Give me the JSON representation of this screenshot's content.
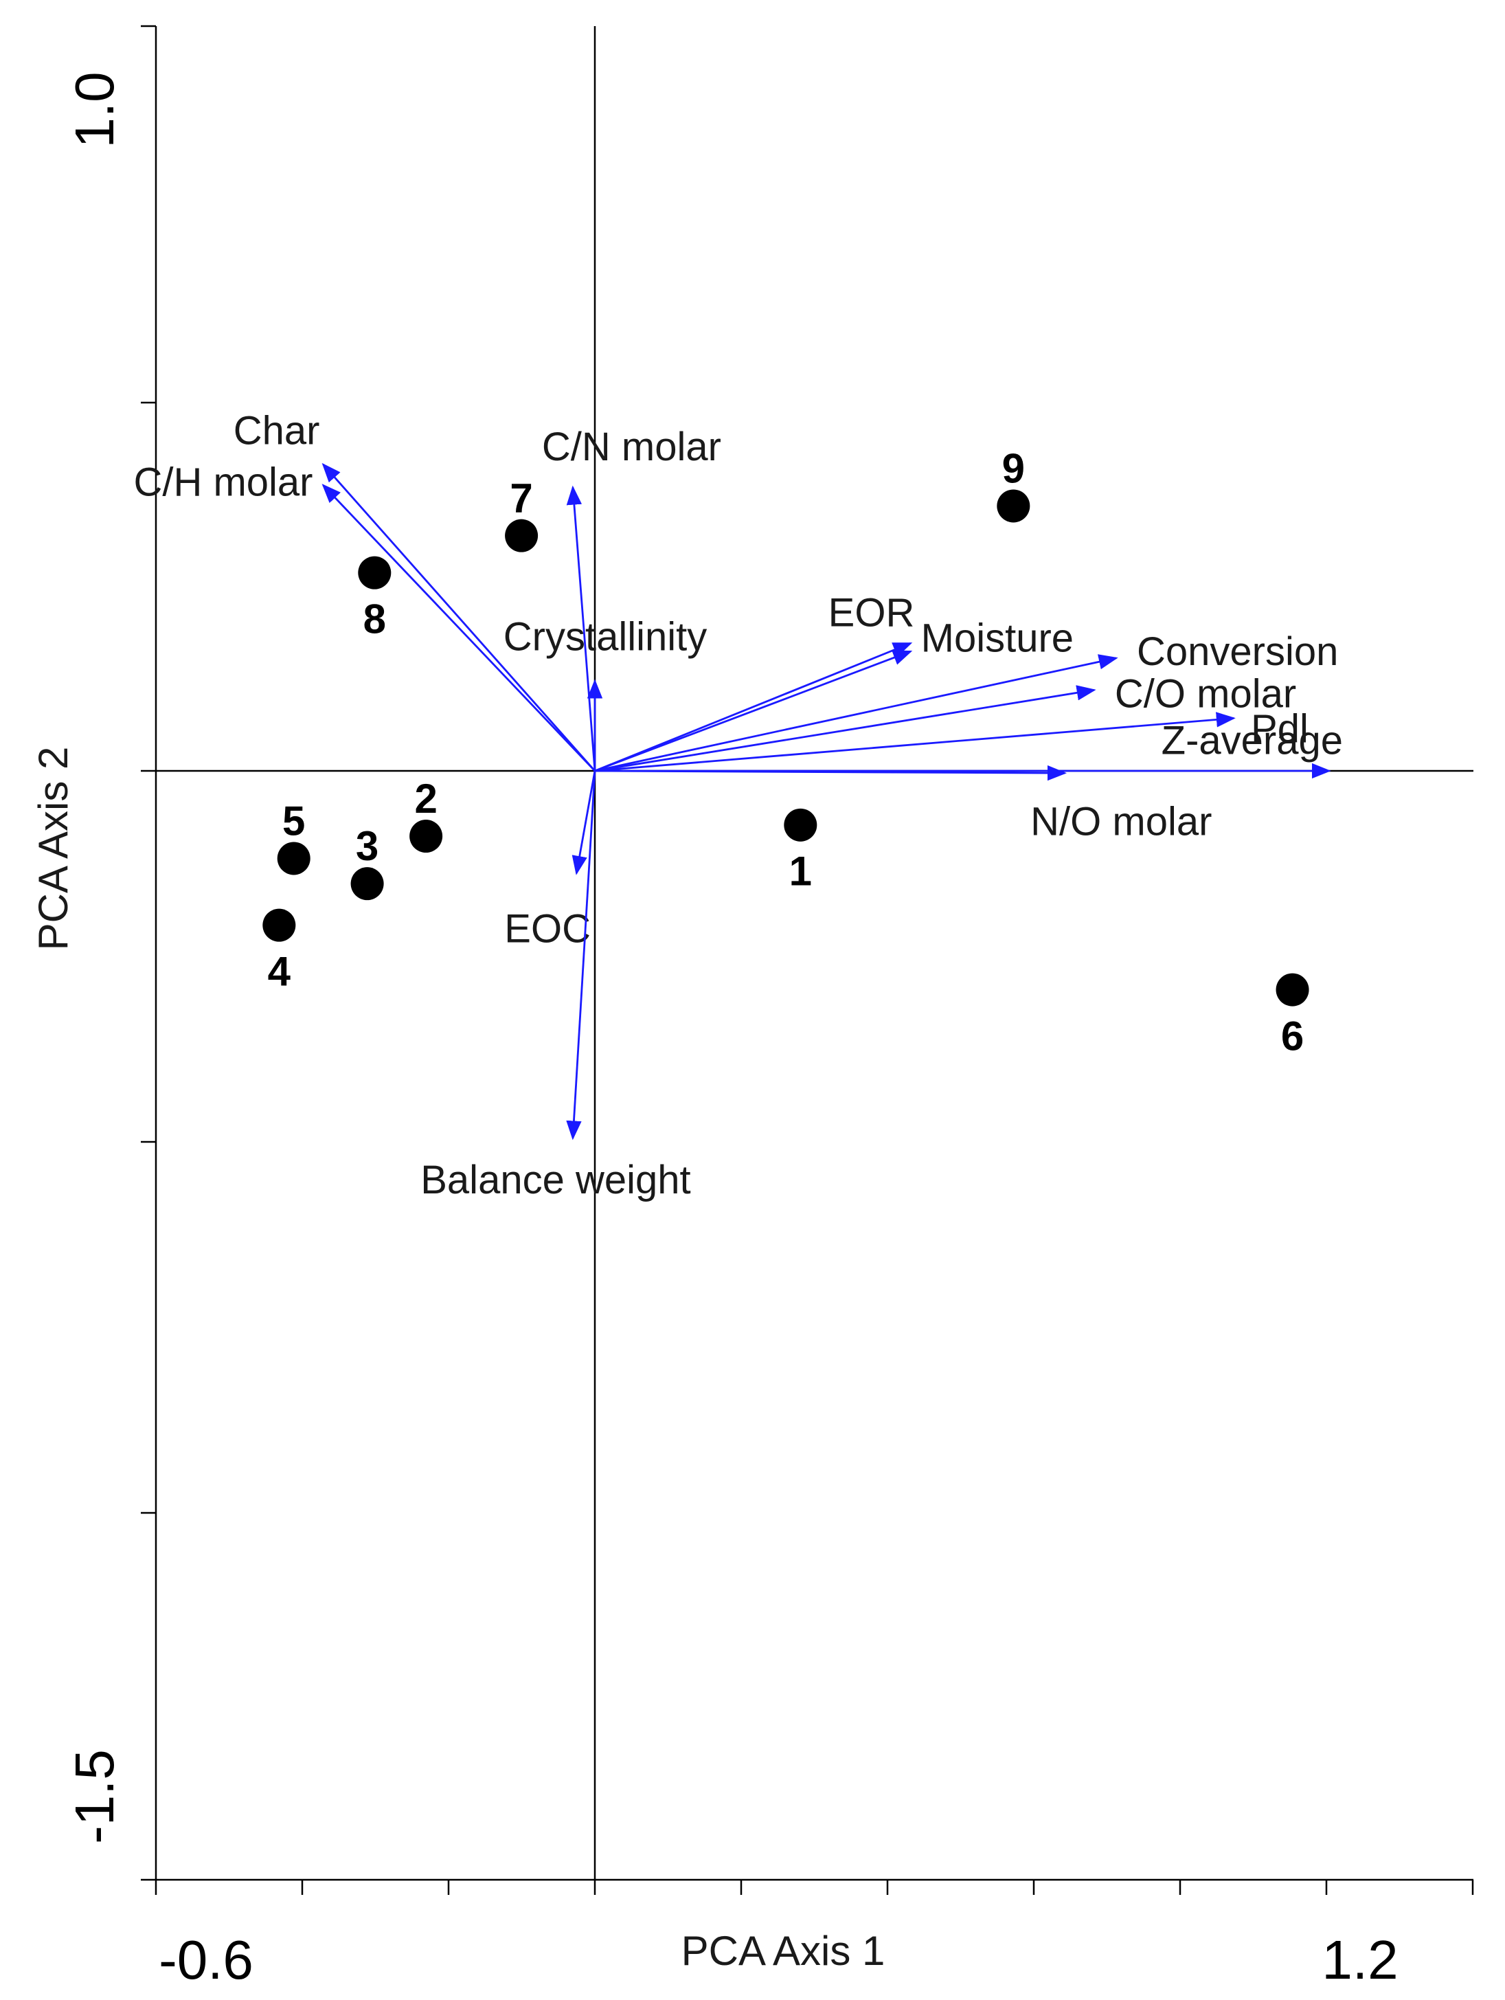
{
  "chart_data": {
    "type": "scatter",
    "subtype": "pca-biplot",
    "xlabel": "PCA Axis 1",
    "ylabel": "PCA Axis 2",
    "xlim": [
      -0.6,
      1.2
    ],
    "ylim": [
      -1.5,
      1.0
    ],
    "xticks": [
      "-0.6",
      "1.2"
    ],
    "yticks": [
      "1.0",
      "-1.5"
    ],
    "samples": [
      {
        "label": "1",
        "x": 0.28,
        "y": -0.073,
        "label_pos": "below"
      },
      {
        "label": "2",
        "x": -0.23,
        "y": -0.088,
        "label_pos": "above"
      },
      {
        "label": "3",
        "x": -0.31,
        "y": -0.152,
        "label_pos": "above"
      },
      {
        "label": "4",
        "x": -0.43,
        "y": -0.208,
        "label_pos": "below"
      },
      {
        "label": "5",
        "x": -0.41,
        "y": -0.118,
        "label_pos": "above"
      },
      {
        "label": "6",
        "x": 0.95,
        "y": -0.295,
        "label_pos": "below"
      },
      {
        "label": "7",
        "x": -0.1,
        "y": 0.317,
        "label_pos": "above"
      },
      {
        "label": "8",
        "x": -0.3,
        "y": 0.267,
        "label_pos": "below"
      },
      {
        "label": "9",
        "x": 0.57,
        "y": 0.357,
        "label_pos": "above"
      }
    ],
    "vectors": [
      {
        "name": "Char",
        "x": -0.37,
        "y": 0.413,
        "label_anchor": "end",
        "label_dx": -5,
        "label_dy": -45
      },
      {
        "name": "C/H molar",
        "x": -0.37,
        "y": 0.385,
        "label_anchor": "end",
        "label_dx": -15,
        "label_dy": 0
      },
      {
        "name": "C/N molar",
        "x": -0.03,
        "y": 0.382,
        "label_anchor": "start",
        "label_dx": -45,
        "label_dy": -55
      },
      {
        "name": "Crystallinity",
        "x": 0.0,
        "y": 0.121,
        "label_anchor": "middle",
        "label_dx": 15,
        "label_dy": -60
      },
      {
        "name": "EOR",
        "x": 0.43,
        "y": 0.172,
        "label_anchor": "start",
        "label_dx": -120,
        "label_dy": -40
      },
      {
        "name": "Moisture",
        "x": 0.43,
        "y": 0.161,
        "label_anchor": "start",
        "label_dx": 15,
        "label_dy": -15
      },
      {
        "name": "Conversion",
        "x": 0.71,
        "y": 0.152,
        "label_anchor": "start",
        "label_dx": 30,
        "label_dy": -5
      },
      {
        "name": "C/O molar",
        "x": 0.68,
        "y": 0.109,
        "label_anchor": "start",
        "label_dx": 30,
        "label_dy": 10
      },
      {
        "name": "Pdl",
        "x": 0.87,
        "y": 0.071,
        "label_anchor": "start",
        "label_dx": 25,
        "label_dy": 20
      },
      {
        "name": "Z-average",
        "x": 1.0,
        "y": 0.0,
        "label_anchor": "end",
        "label_dx": 20,
        "label_dy": -40
      },
      {
        "name": "N/O molar",
        "x": 0.64,
        "y": -0.003,
        "label_anchor": "start",
        "label_dx": -50,
        "label_dy": 75
      },
      {
        "name": "EOC",
        "x": -0.025,
        "y": -0.138,
        "label_anchor": "start",
        "label_dx": -105,
        "label_dy": 85
      },
      {
        "name": "Balance weight",
        "x": -0.03,
        "y": -0.495,
        "label_anchor": "middle",
        "label_dx": -25,
        "label_dy": 65
      }
    ]
  }
}
